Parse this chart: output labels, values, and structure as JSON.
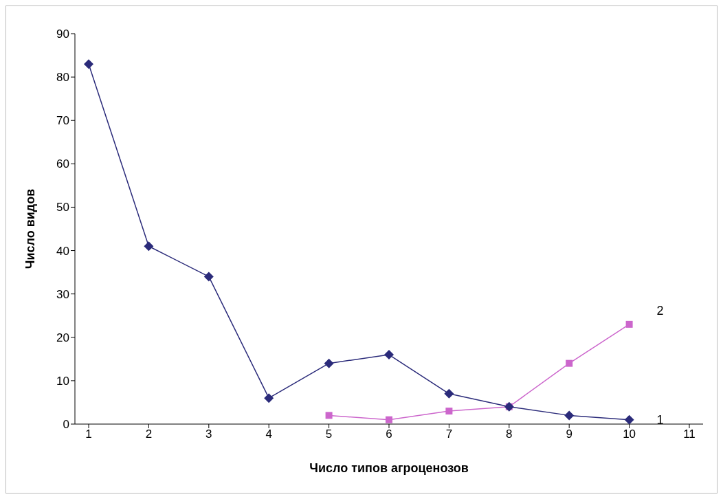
{
  "chart_data": {
    "type": "line",
    "xlabel": "Число типов агроценозов",
    "ylabel": "Число видов",
    "categories": [
      "1",
      "2",
      "3",
      "4",
      "5",
      "6",
      "7",
      "8",
      "9",
      "10",
      "11"
    ],
    "ylim": [
      0,
      90
    ],
    "yticks": [
      0,
      10,
      20,
      30,
      40,
      50,
      60,
      70,
      80,
      90
    ],
    "grid": false,
    "legend": false,
    "series": [
      {
        "name": "1",
        "color": "#2b2b7a",
        "marker": "diamond",
        "values": [
          83,
          41,
          34,
          6,
          14,
          16,
          7,
          4,
          2,
          1,
          null
        ]
      },
      {
        "name": "2",
        "color": "#cc66cc",
        "marker": "square",
        "values": [
          null,
          null,
          null,
          null,
          2,
          1,
          3,
          4,
          14,
          23,
          null
        ]
      }
    ]
  }
}
